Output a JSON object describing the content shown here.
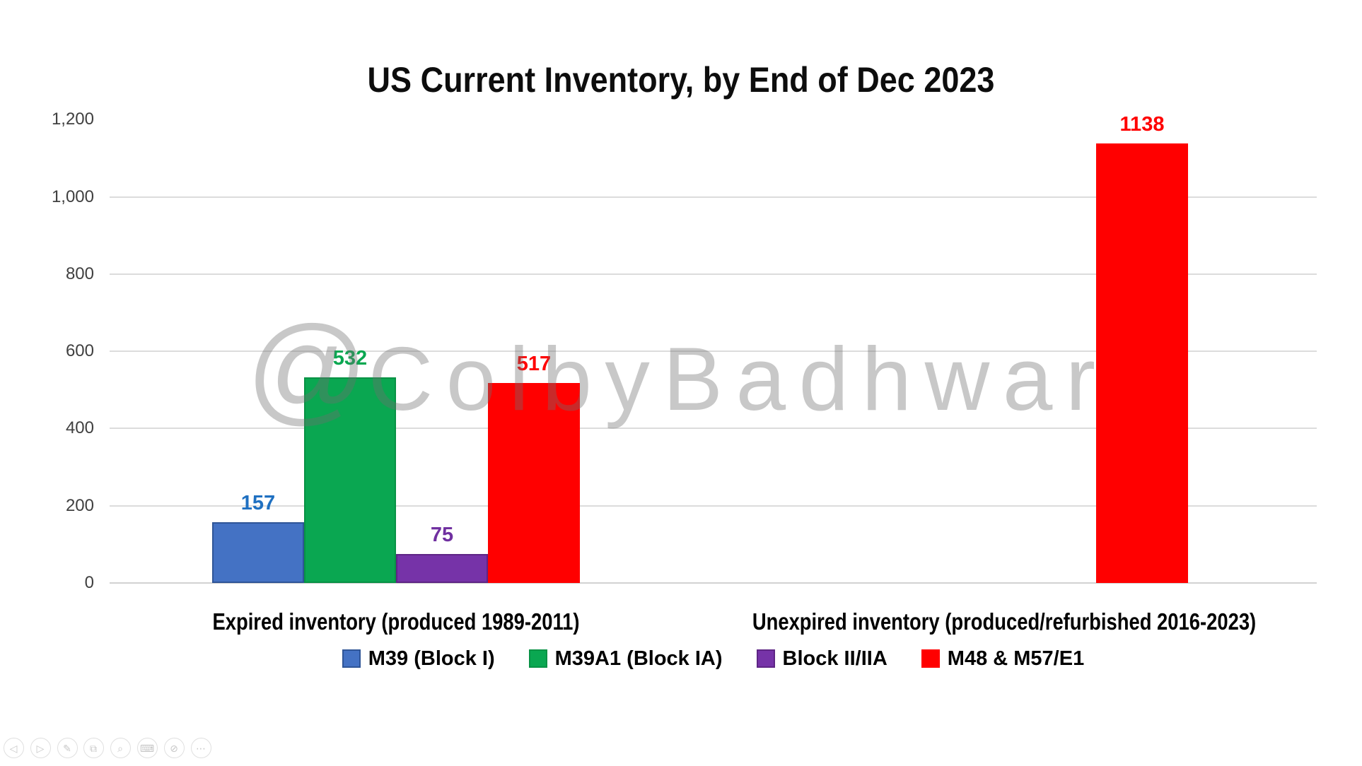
{
  "slide": {
    "watermark": "@ColbyBadhwar"
  },
  "chart_data": {
    "type": "bar",
    "title": "US Current Inventory, by End of Dec 2023",
    "categories": [
      "Expired inventory (produced 1989-2011)",
      "Unexpired inventory (produced/refurbished 2016-2023)"
    ],
    "series": [
      {
        "name": "M39 (Block I)",
        "fill": "#4472C4",
        "border": "#2F5597",
        "label_color": "#1F70C1",
        "values": [
          157,
          null
        ]
      },
      {
        "name": "M39A1 (Block IA)",
        "fill": "#0AA751",
        "border": "#089245",
        "label_color": "#0AA751",
        "values": [
          532,
          null
        ]
      },
      {
        "name": "Block II/IIA",
        "fill": "#7633A8",
        "border": "#5E2585",
        "label_color": "#7030A0",
        "values": [
          75,
          null
        ]
      },
      {
        "name": "M48 & M57/E1",
        "fill": "#FF0000",
        "border": "#FF0000",
        "label_color": "#FF0000",
        "values": [
          517,
          1138
        ]
      }
    ],
    "value_labels_shown": true,
    "ylim": [
      0,
      1200
    ],
    "ytick_interval": 200,
    "ytick_labels": [
      "0",
      "200",
      "400",
      "600",
      "800",
      "1,000",
      "1,200"
    ],
    "gridline_values": [
      200,
      400,
      600,
      800,
      1000
    ],
    "gridline_color": "#DCDCDC",
    "axis_line_color": "#D2D2D2",
    "tick_label_color": "#404040",
    "grid": "horizontal",
    "legend_position": "bottom"
  },
  "toolbar": {
    "buttons": [
      {
        "name": "previous-slide",
        "glyph": "◁"
      },
      {
        "name": "next-slide",
        "glyph": "▷"
      },
      {
        "name": "pen-tools",
        "glyph": "✎"
      },
      {
        "name": "see-all-slides",
        "glyph": "⧉"
      },
      {
        "name": "zoom-slide",
        "glyph": "⌕"
      },
      {
        "name": "captions",
        "glyph": "⌨"
      },
      {
        "name": "camera-off",
        "glyph": "⊘"
      },
      {
        "name": "more-options",
        "glyph": "⋯"
      }
    ]
  }
}
